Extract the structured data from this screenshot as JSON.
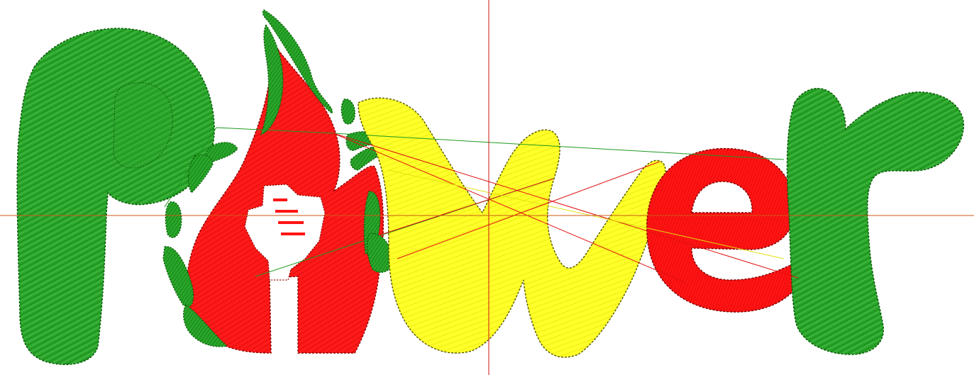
{
  "design": {
    "text": "Power",
    "colors": {
      "green": "#1e9a1e",
      "red": "#ff1414",
      "yellow": "#ffff22",
      "background": "#ffffff",
      "guide_vertical": "#d01010",
      "guide_horizontal": "#cc5a14",
      "jump_green": "#1e9a1e",
      "jump_red": "#e01010",
      "jump_yellow": "#e0e010"
    },
    "icons": {
      "fist": "raised-fist-icon",
      "flame": "flame-icon"
    }
  }
}
